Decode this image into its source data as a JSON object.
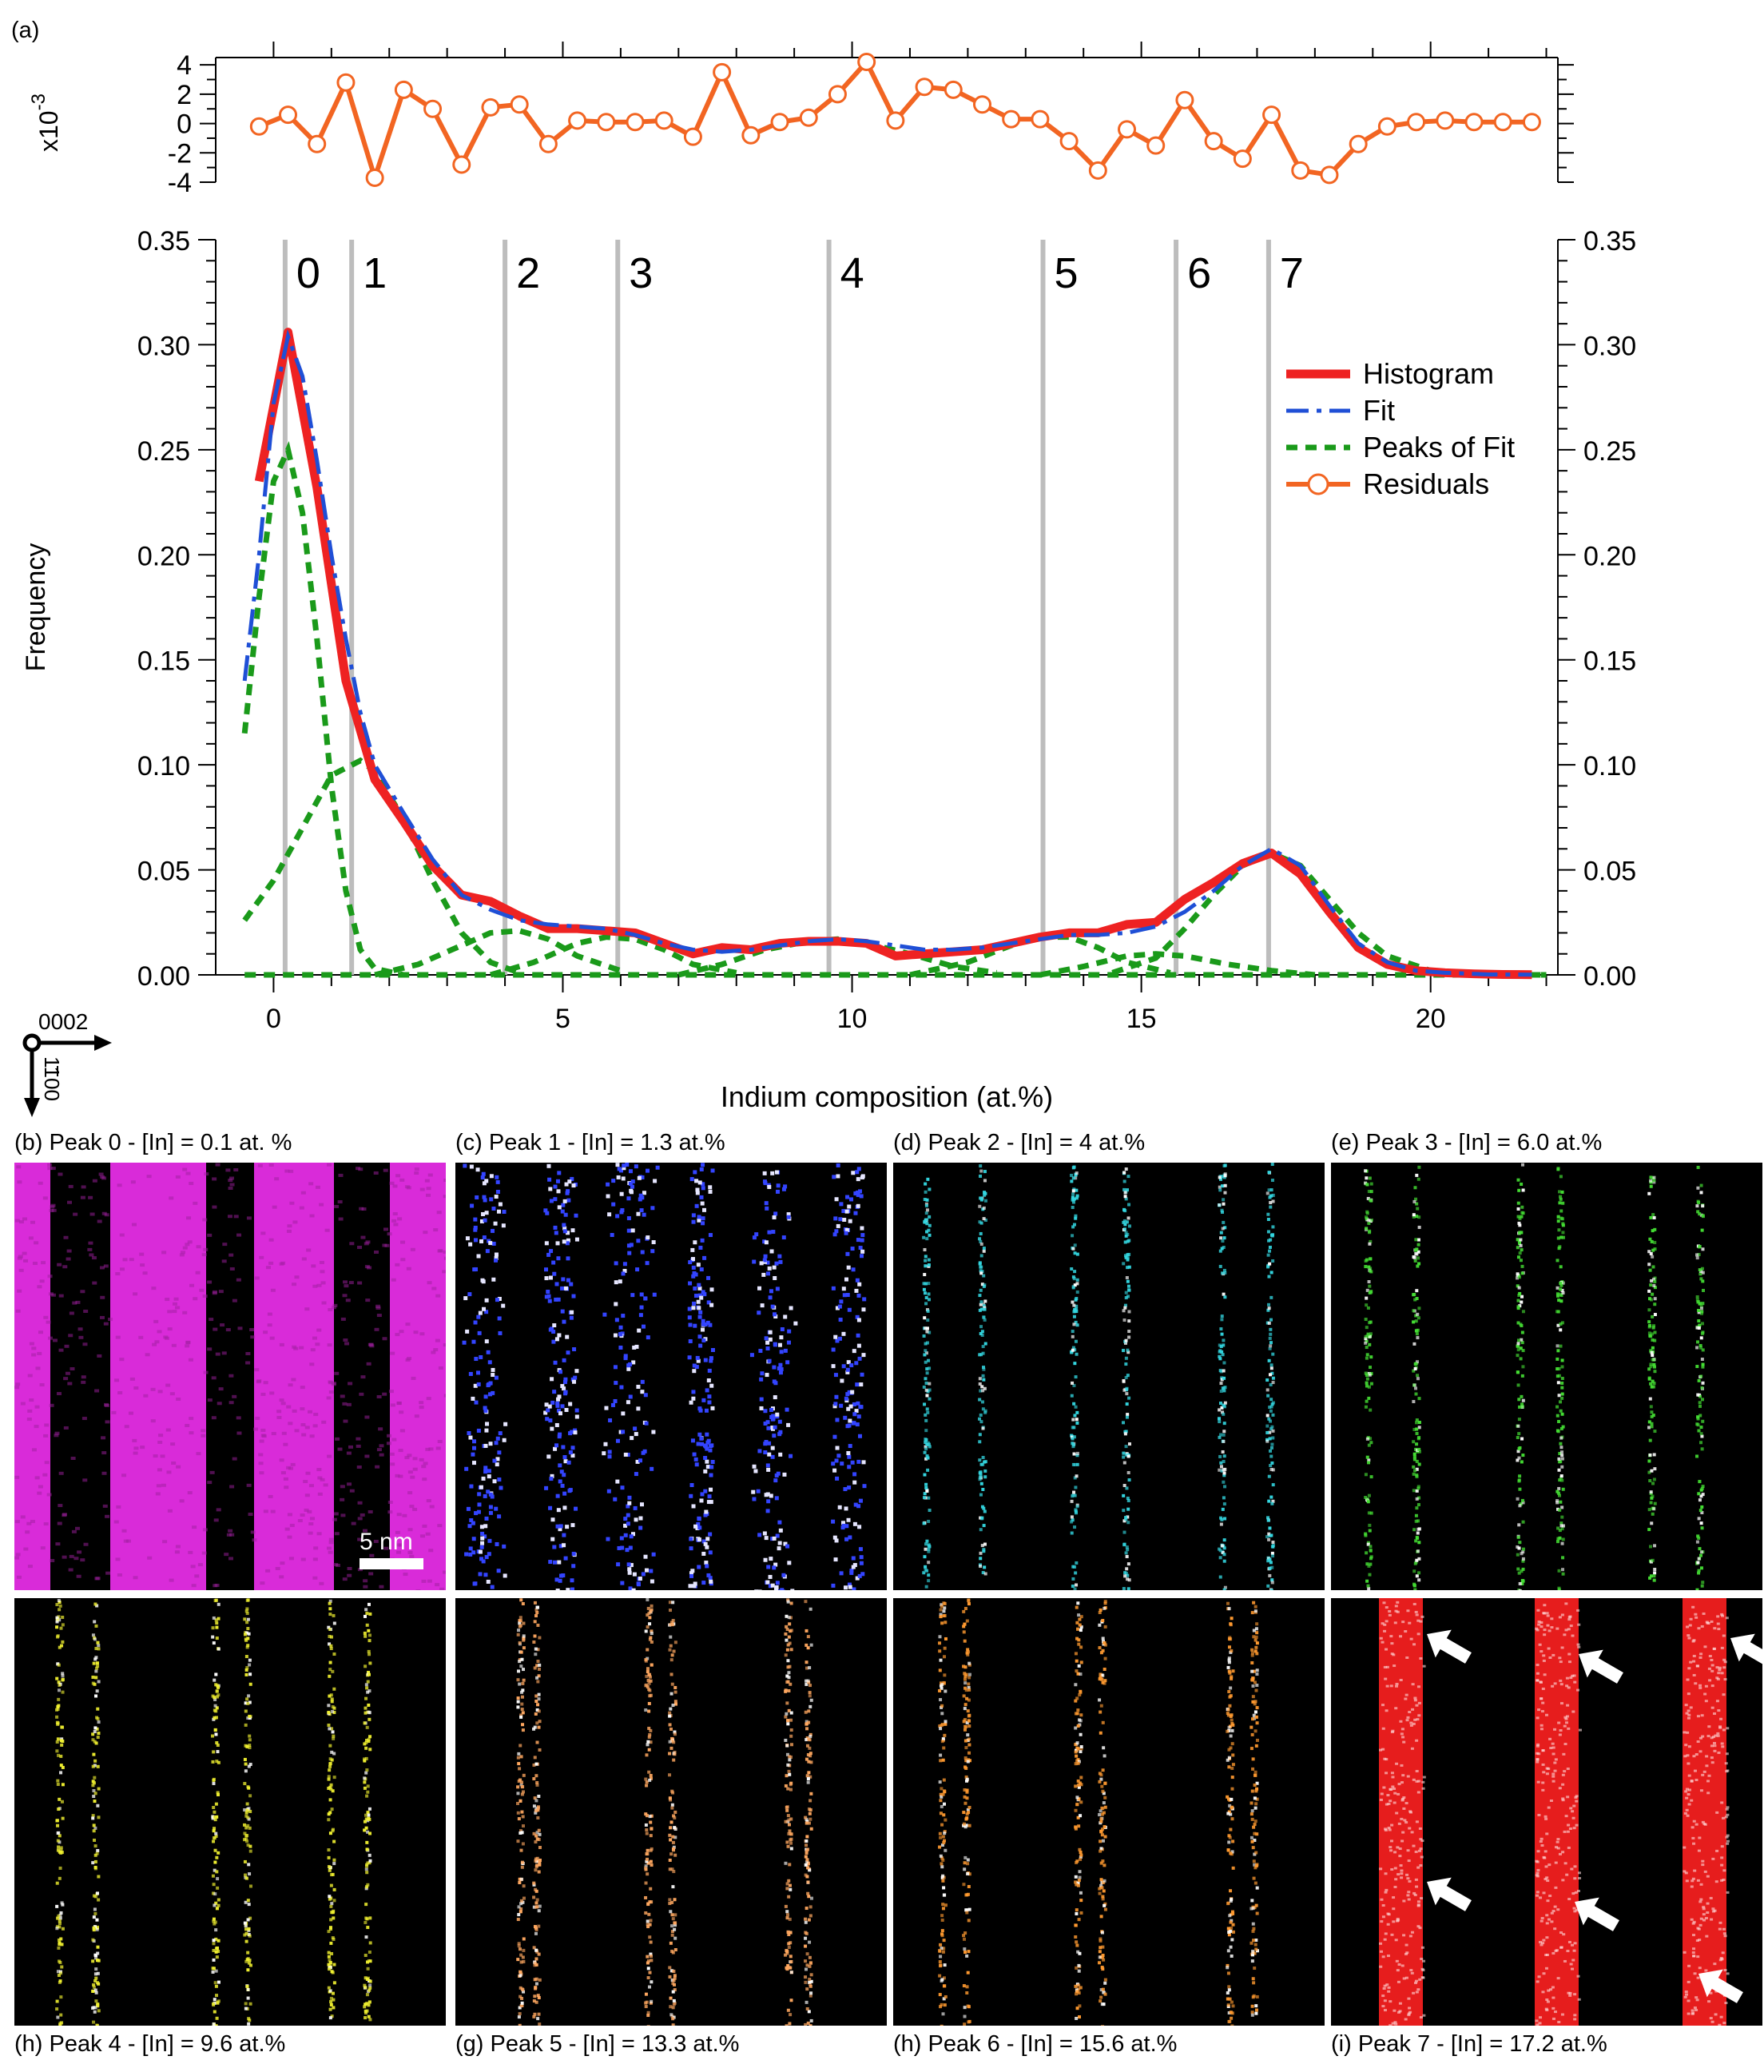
{
  "panel_a_label": "(a)",
  "chart_data": [
    {
      "type": "line",
      "name": "residuals",
      "ylabel": "x10",
      "ylabel_exponent": "-3",
      "x": [
        -0.25,
        0.25,
        0.75,
        1.25,
        1.75,
        2.25,
        2.75,
        3.25,
        3.75,
        4.25,
        4.75,
        5.25,
        5.75,
        6.25,
        6.75,
        7.25,
        7.75,
        8.25,
        8.75,
        9.25,
        9.75,
        10.25,
        10.75,
        11.25,
        11.75,
        12.25,
        12.75,
        13.25,
        13.75,
        14.25,
        14.75,
        15.25,
        15.75,
        16.25,
        16.75,
        17.25,
        17.75,
        18.25,
        18.75,
        19.25,
        19.75,
        20.25,
        20.75,
        21.25,
        21.75
      ],
      "values": [
        -0.2,
        0.6,
        -1.4,
        2.8,
        -3.7,
        2.3,
        1.0,
        -2.8,
        1.1,
        1.3,
        -1.4,
        0.2,
        0.1,
        0.1,
        0.2,
        -0.9,
        3.5,
        -0.8,
        0.1,
        0.4,
        2.0,
        4.2,
        0.2,
        2.5,
        2.3,
        1.3,
        0.3,
        0.3,
        -1.2,
        -3.2,
        -0.4,
        -1.5,
        1.6,
        -1.2,
        -2.4,
        0.6,
        -3.2,
        -3.5,
        -1.4,
        -0.2,
        0.1,
        0.2,
        0.1,
        0.1,
        0.1
      ],
      "ylim": [
        -4,
        4.5
      ],
      "yticks": [
        4,
        2,
        0,
        -2,
        -4
      ],
      "color": "#f26522"
    },
    {
      "type": "line",
      "name": "histogram-fit",
      "xlabel": "Indium composition (at.%)",
      "ylabel": "Frequency",
      "xlim": [
        -1,
        22.2
      ],
      "ylim": [
        0,
        0.35
      ],
      "xticks": [
        0,
        5,
        10,
        15,
        20
      ],
      "yticks": [
        "0.00",
        "0.05",
        "0.10",
        "0.15",
        "0.20",
        "0.25",
        "0.30",
        "0.35"
      ],
      "peak_markers": [
        {
          "label": "0",
          "x": 0.2
        },
        {
          "label": "1",
          "x": 1.35
        },
        {
          "label": "2",
          "x": 4.0
        },
        {
          "label": "3",
          "x": 5.95
        },
        {
          "label": "4",
          "x": 9.6
        },
        {
          "label": "5",
          "x": 13.3
        },
        {
          "label": "6",
          "x": 15.6
        },
        {
          "label": "7",
          "x": 17.2
        }
      ],
      "series": [
        {
          "name": "Histogram",
          "style": "solid-thick",
          "color": "#ee2222",
          "x": [
            -0.25,
            0.25,
            0.75,
            1.25,
            1.75,
            2.25,
            2.75,
            3.25,
            3.75,
            4.25,
            4.75,
            5.25,
            5.75,
            6.25,
            6.75,
            7.25,
            7.75,
            8.25,
            8.75,
            9.25,
            9.75,
            10.25,
            10.75,
            11.25,
            11.75,
            12.25,
            12.75,
            13.25,
            13.75,
            14.25,
            14.75,
            15.25,
            15.75,
            16.25,
            16.75,
            17.25,
            17.75,
            18.25,
            18.75,
            19.25,
            19.75,
            20.25,
            20.75,
            21.25,
            21.75
          ],
          "values": [
            0.235,
            0.306,
            0.232,
            0.14,
            0.093,
            0.073,
            0.052,
            0.038,
            0.035,
            0.028,
            0.022,
            0.022,
            0.021,
            0.02,
            0.015,
            0.01,
            0.013,
            0.012,
            0.015,
            0.016,
            0.016,
            0.015,
            0.009,
            0.01,
            0.011,
            0.012,
            0.015,
            0.018,
            0.02,
            0.02,
            0.024,
            0.025,
            0.036,
            0.044,
            0.053,
            0.058,
            0.048,
            0.03,
            0.013,
            0.005,
            0.002,
            0.001,
            0.0005,
            0.0002,
            0.0001
          ]
        },
        {
          "name": "Fit",
          "style": "dash-dot",
          "color": "#1f4fd6",
          "x": [
            -0.5,
            -0.25,
            0,
            0.25,
            0.5,
            0.75,
            1.0,
            1.25,
            1.5,
            1.75,
            2.25,
            2.75,
            3.25,
            3.75,
            4.25,
            4.75,
            5.25,
            5.75,
            6.25,
            6.75,
            7.25,
            7.75,
            8.25,
            8.75,
            9.25,
            9.75,
            10.25,
            10.75,
            11.25,
            11.75,
            12.25,
            12.75,
            13.25,
            13.75,
            14.25,
            14.75,
            15.25,
            15.75,
            16.25,
            16.75,
            17.25,
            17.75,
            18.25,
            18.75,
            19.25,
            19.75,
            20.25,
            21,
            21.75
          ],
          "values": [
            0.14,
            0.2,
            0.272,
            0.304,
            0.285,
            0.245,
            0.2,
            0.16,
            0.125,
            0.1,
            0.077,
            0.055,
            0.038,
            0.031,
            0.026,
            0.024,
            0.023,
            0.022,
            0.019,
            0.015,
            0.012,
            0.011,
            0.012,
            0.014,
            0.016,
            0.017,
            0.016,
            0.014,
            0.012,
            0.012,
            0.013,
            0.015,
            0.017,
            0.019,
            0.019,
            0.02,
            0.023,
            0.03,
            0.04,
            0.052,
            0.06,
            0.052,
            0.033,
            0.015,
            0.006,
            0.002,
            0.001,
            0.0002,
            0.0001
          ]
        },
        {
          "name": "Peaks of Fit",
          "style": "dotted",
          "color": "#1a9a1a",
          "peaks": [
            {
              "x": [
                -0.5,
                -0.25,
                0,
                0.25,
                0.5,
                0.75,
                1.0,
                1.25,
                1.5,
                1.75,
                2.25
              ],
              "values": [
                0.115,
                0.18,
                0.235,
                0.25,
                0.22,
                0.16,
                0.09,
                0.04,
                0.012,
                0.003,
                0.0
              ]
            },
            {
              "x": [
                -0.5,
                0,
                0.5,
                1.0,
                1.5,
                1.75,
                2.25,
                2.75,
                3.25,
                3.75,
                4.25
              ],
              "values": [
                0.026,
                0.045,
                0.07,
                0.095,
                0.102,
                0.097,
                0.074,
                0.045,
                0.02,
                0.006,
                0.001
              ]
            },
            {
              "x": [
                1.75,
                2.5,
                3.25,
                3.75,
                4.25,
                4.75,
                5.25,
                6.0
              ],
              "values": [
                0.0,
                0.005,
                0.014,
                0.02,
                0.021,
                0.017,
                0.009,
                0.002
              ]
            },
            {
              "x": [
                3.75,
                4.5,
                5.25,
                5.75,
                6.25,
                6.75,
                7.25,
                8.0
              ],
              "values": [
                0.0,
                0.006,
                0.015,
                0.018,
                0.017,
                0.012,
                0.005,
                0.001
              ]
            },
            {
              "x": [
                7.0,
                7.75,
                8.5,
                9.25,
                9.75,
                10.25,
                11.0,
                11.75,
                12.5
              ],
              "values": [
                0.0,
                0.005,
                0.012,
                0.016,
                0.017,
                0.015,
                0.01,
                0.004,
                0.001
              ]
            },
            {
              "x": [
                11.0,
                12.0,
                12.75,
                13.25,
                13.75,
                14.25,
                14.75,
                15.5
              ],
              "values": [
                0.0,
                0.006,
                0.014,
                0.018,
                0.018,
                0.013,
                0.006,
                0.001
              ]
            },
            {
              "x": [
                13.25,
                14.0,
                14.75,
                15.25,
                15.75,
                16.5,
                17.25,
                18.0
              ],
              "values": [
                0.0,
                0.004,
                0.009,
                0.01,
                0.009,
                0.005,
                0.002,
                0.0
              ]
            },
            {
              "x": [
                14.5,
                15.25,
                15.75,
                16.25,
                16.75,
                17.25,
                17.75,
                18.25,
                18.75,
                19.25,
                20.0,
                21.0,
                22.0
              ],
              "values": [
                0.001,
                0.008,
                0.022,
                0.038,
                0.052,
                0.058,
                0.052,
                0.036,
                0.02,
                0.009,
                0.002,
                0.0,
                0.0
              ]
            },
            {
              "x": [
                -0.5,
                22.0
              ],
              "values": [
                0.0,
                0.0
              ]
            }
          ]
        },
        {
          "name": "Residuals",
          "style": "solid-circles",
          "color": "#f26522"
        }
      ]
    }
  ],
  "orientation": {
    "up_label": "0002",
    "side_label": "1̅100",
    "side_text": "1100"
  },
  "scale_bar": "5 nm",
  "maps": [
    {
      "caption": "(b) Peak 0  - [In] = 0.1 at. %",
      "color": "#ff33ff",
      "mode": "bands",
      "row": 0,
      "col": 0
    },
    {
      "caption": "(c) Peak 1 - [In] = 1.3 at.%",
      "color": "#3344ff",
      "mode": "scatter",
      "row": 0,
      "col": 1
    },
    {
      "caption": "(d) Peak 2 - [In] = 4 at.%",
      "color": "#33d6e0",
      "mode": "lines",
      "row": 0,
      "col": 2
    },
    {
      "caption": "(e) Peak 3 - [In] = 6.0 at.%",
      "color": "#44dd33",
      "mode": "lines",
      "row": 0,
      "col": 3
    },
    {
      "caption": "(h) Peak 4 - [In] = 9.6 at.%",
      "color": "#f0f030",
      "mode": "lines",
      "row": 1,
      "col": 0
    },
    {
      "caption": "(g) Peak 5 - [In] = 13.3 at.%",
      "color": "#ffa860",
      "mode": "lines",
      "row": 1,
      "col": 1
    },
    {
      "caption": "(h) Peak 6 - [In] = 15.6 at.%",
      "color": "#ff9a30",
      "mode": "lines",
      "row": 1,
      "col": 2
    },
    {
      "caption": "(i) Peak 7 - [In] = 17.2 at.%",
      "color": "#ff2020",
      "mode": "redbands",
      "row": 1,
      "col": 3
    }
  ]
}
